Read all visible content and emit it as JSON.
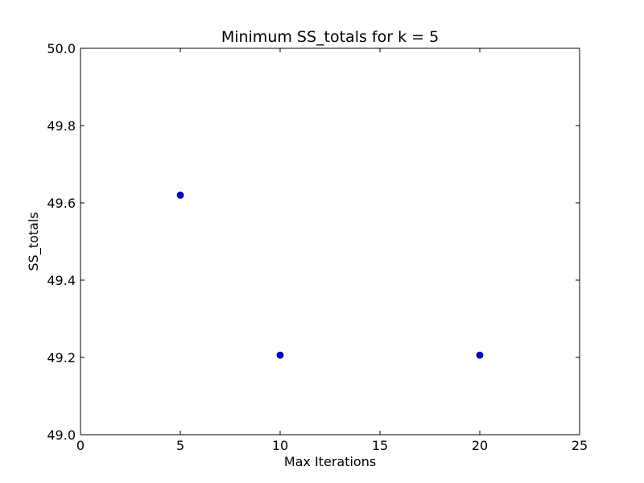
{
  "chart_data": {
    "type": "scatter",
    "title": "Minimum SS_totals for k = 5",
    "xlabel": "Max Iterations",
    "ylabel": "SS_totals",
    "xlim": [
      0,
      25
    ],
    "ylim": [
      49.0,
      50.0
    ],
    "x_ticks": [
      0,
      5,
      10,
      15,
      20,
      25
    ],
    "y_ticks": [
      49.0,
      49.2,
      49.4,
      49.6,
      49.8,
      50.0
    ],
    "x_tick_labels": [
      "0",
      "5",
      "10",
      "15",
      "20",
      "25"
    ],
    "y_tick_labels": [
      "49.0",
      "49.2",
      "49.4",
      "49.6",
      "49.8",
      "50.0"
    ],
    "grid": false,
    "legend": "none",
    "series": [
      {
        "x": [
          5,
          10,
          20
        ],
        "y": [
          49.62,
          49.206,
          49.206
        ],
        "color": "#0000ff"
      }
    ]
  }
}
